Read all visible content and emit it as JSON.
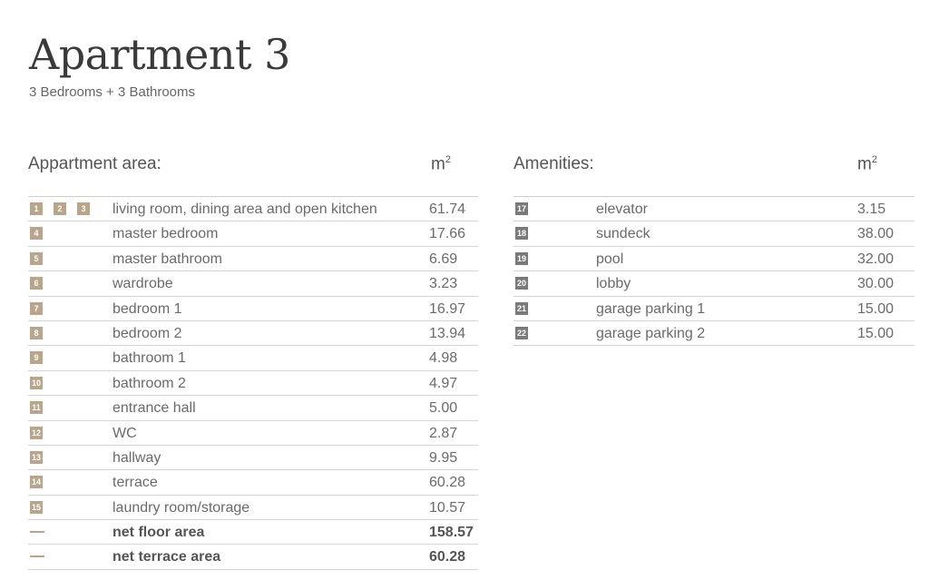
{
  "title": "Apartment 3",
  "subtitle": "3 Bedrooms + 3 Bathrooms",
  "apartment": {
    "heading": "Appartment area:",
    "unit": "m",
    "unit_sup": "2",
    "badge_color": "#b9a58a",
    "rows": [
      {
        "badges": [
          "1",
          "2",
          "3"
        ],
        "name": "living room, dining area and open kitchen",
        "value": "61.74"
      },
      {
        "badges": [
          "4"
        ],
        "name": "master bedroom",
        "value": "17.66"
      },
      {
        "badges": [
          "5"
        ],
        "name": "master bathroom",
        "value": "6.69"
      },
      {
        "badges": [
          "6"
        ],
        "name": "wardrobe",
        "value": "3.23"
      },
      {
        "badges": [
          "7"
        ],
        "name": "bedroom 1",
        "value": "16.97"
      },
      {
        "badges": [
          "8"
        ],
        "name": "bedroom 2",
        "value": "13.94"
      },
      {
        "badges": [
          "9"
        ],
        "name": "bathroom 1",
        "value": "4.98"
      },
      {
        "badges": [
          "10"
        ],
        "name": "bathroom 2",
        "value": "4.97"
      },
      {
        "badges": [
          "11"
        ],
        "name": "entrance hall",
        "value": "5.00"
      },
      {
        "badges": [
          "12"
        ],
        "name": "WC",
        "value": "2.87"
      },
      {
        "badges": [
          "13"
        ],
        "name": "hallway",
        "value": "9.95"
      },
      {
        "badges": [
          "14"
        ],
        "name": "terrace",
        "value": "60.28"
      },
      {
        "badges": [
          "15"
        ],
        "name": "laundry room/storage",
        "value": "10.57"
      }
    ],
    "totals": [
      {
        "name": "net floor area",
        "value": "158.57"
      },
      {
        "name": "net terrace area",
        "value": "60.28"
      }
    ]
  },
  "amenities": {
    "heading": "Amenities:",
    "unit": "m",
    "unit_sup": "2",
    "badge_color": "#7a7a7a",
    "rows": [
      {
        "badges": [
          "17"
        ],
        "name": "elevator",
        "value": "3.15"
      },
      {
        "badges": [
          "18"
        ],
        "name": "sundeck",
        "value": "38.00"
      },
      {
        "badges": [
          "19"
        ],
        "name": "pool",
        "value": "32.00"
      },
      {
        "badges": [
          "20"
        ],
        "name": "lobby",
        "value": "30.00"
      },
      {
        "badges": [
          "21"
        ],
        "name": "garage parking 1",
        "value": "15.00"
      },
      {
        "badges": [
          "22"
        ],
        "name": "garage parking 2",
        "value": "15.00"
      }
    ]
  }
}
